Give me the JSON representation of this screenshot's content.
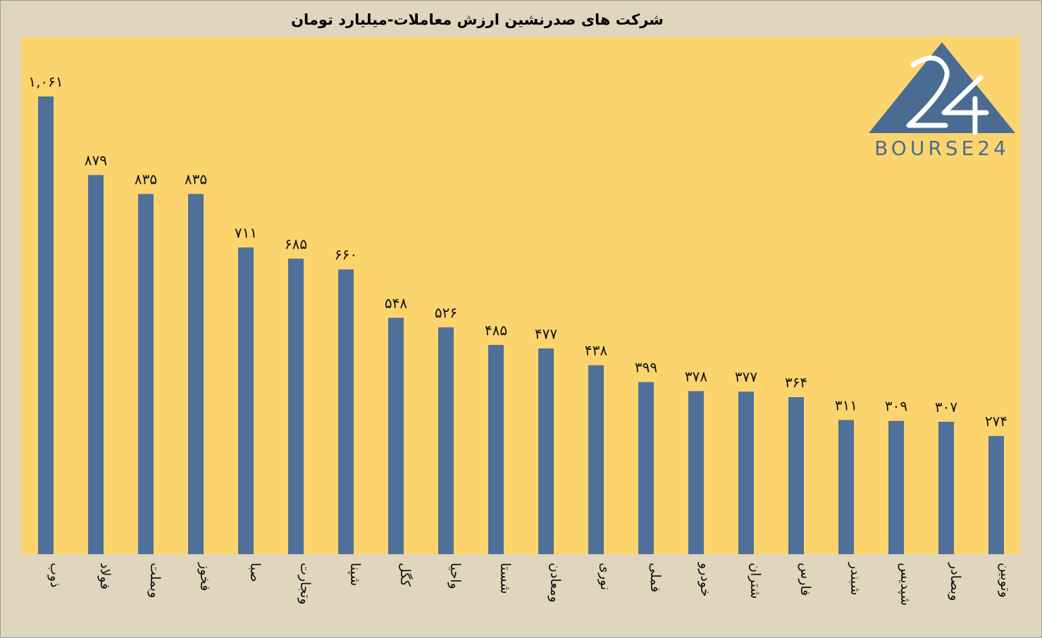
{
  "colors": {
    "background": "#e0d5bd",
    "plot_area": "#fcd46d",
    "bar": "#4e7099",
    "logo": "#4a6c93"
  },
  "logo": {
    "text": "BOURSE24",
    "mark": "24"
  },
  "chart_data": {
    "type": "bar",
    "title": "شرکت های صدرنشین ارزش معاملات-میلیارد تومان",
    "xlabel": "",
    "ylabel": "",
    "grid": false,
    "ylim": [
      0,
      1061
    ],
    "categories": [
      "ذوب",
      "فولاد",
      "وبملت",
      "فخوز",
      "صبا",
      "وتجارت",
      "شپنا",
      "کگل",
      "واحیا",
      "شستا",
      "ومعادن",
      "نوری",
      "فملی",
      "خودرو",
      "شتران",
      "فارس",
      "شبندر",
      "شپدیس",
      "وبصادر",
      "وتوبین"
    ],
    "values": [
      1061,
      879,
      835,
      835,
      711,
      685,
      660,
      548,
      526,
      485,
      477,
      438,
      399,
      378,
      377,
      364,
      311,
      309,
      307,
      274
    ],
    "value_labels": [
      "۱,۰۶۱",
      "۸۷۹",
      "۸۳۵",
      "۸۳۵",
      "۷۱۱",
      "۶۸۵",
      "۶۶۰",
      "۵۴۸",
      "۵۲۶",
      "۴۸۵",
      "۴۷۷",
      "۴۳۸",
      "۳۹۹",
      "۳۷۸",
      "۳۷۷",
      "۳۶۴",
      "۳۱۱",
      "۳۰۹",
      "۳۰۷",
      "۲۷۴"
    ]
  }
}
